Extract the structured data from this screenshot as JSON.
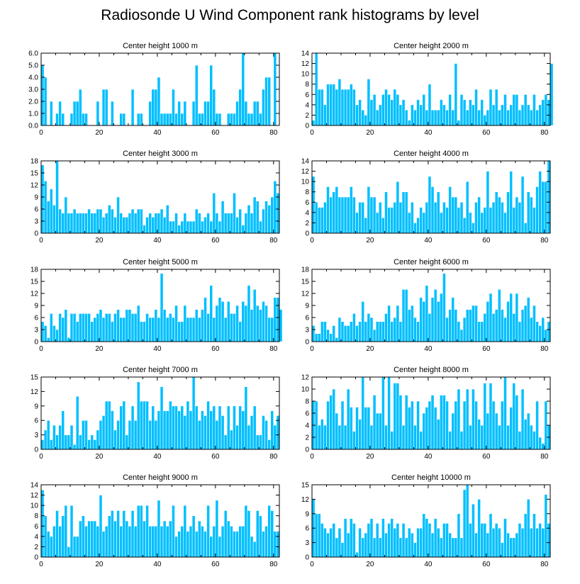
{
  "page_title": "Radiosonde U Wind Component rank histograms by level",
  "colors": {
    "bar": "#00bfff",
    "bar_edge": "#ffffff",
    "axis": "#000000",
    "background": "#ffffff"
  },
  "chart_data": [
    {
      "type": "bar",
      "title": "Center height 1000 m",
      "xlim": [
        0,
        82
      ],
      "ylim": [
        0,
        6
      ],
      "xticks": [
        0,
        20,
        40,
        60,
        80
      ],
      "yticks": [
        0,
        1,
        2,
        3,
        4,
        5,
        6
      ],
      "ytick_labels": [
        "0.0",
        "1.0",
        "2.0",
        "3.0",
        "4.0",
        "5.0",
        "6.0"
      ],
      "values": [
        5,
        4,
        0,
        2,
        0,
        1,
        2,
        1,
        0,
        0,
        1,
        2,
        2,
        3,
        1,
        1,
        0,
        0,
        0,
        2,
        0,
        3,
        3,
        0,
        2,
        0,
        0,
        1,
        1,
        0,
        0,
        3,
        0,
        1,
        1,
        0,
        0,
        2,
        3,
        3,
        4,
        1,
        1,
        1,
        1,
        3,
        1,
        2,
        1,
        2,
        0,
        0,
        2,
        5,
        1,
        1,
        2,
        2,
        5,
        3,
        1,
        1,
        0,
        0,
        1,
        1,
        1,
        2,
        3,
        6,
        2,
        1,
        1,
        2,
        2,
        1,
        3,
        4,
        4,
        0,
        6,
        0
      ]
    },
    {
      "type": "bar",
      "title": "Center height 2000 m",
      "xlim": [
        0,
        82
      ],
      "ylim": [
        0,
        14
      ],
      "xticks": [
        0,
        20,
        40,
        60,
        80
      ],
      "yticks": [
        0,
        2,
        4,
        6,
        8,
        10,
        12,
        14
      ],
      "ytick_labels": [
        "0",
        "2",
        "4",
        "6",
        "8",
        "10",
        "12",
        "14"
      ],
      "values": [
        1,
        14,
        7,
        7,
        4,
        8,
        8,
        8,
        7,
        9,
        7,
        7,
        7,
        8,
        7,
        4,
        5,
        3,
        2,
        9,
        5,
        6,
        3,
        4,
        6,
        7,
        6,
        5,
        7,
        6,
        4,
        5,
        3,
        1,
        4,
        3,
        5,
        4,
        6,
        3,
        8,
        3,
        3,
        3,
        5,
        4,
        3,
        6,
        3,
        12,
        1,
        6,
        5,
        3,
        5,
        4,
        7,
        3,
        5,
        2,
        3,
        7,
        4,
        7,
        3,
        4,
        6,
        3,
        4,
        6,
        6,
        3,
        4,
        6,
        4,
        3,
        6,
        3,
        4,
        5,
        6,
        5,
        12
      ]
    },
    {
      "type": "bar",
      "title": "Center height 3000 m",
      "xlim": [
        0,
        82
      ],
      "ylim": [
        0,
        18
      ],
      "xticks": [
        0,
        20,
        40,
        60,
        80
      ],
      "yticks": [
        0,
        3,
        6,
        9,
        12,
        15,
        18
      ],
      "ytick_labels": [
        "0",
        "3",
        "6",
        "9",
        "12",
        "15",
        "18"
      ],
      "values": [
        17,
        13,
        8,
        11,
        7,
        18,
        6,
        5,
        9,
        5,
        5,
        6,
        5,
        5,
        5,
        5,
        6,
        5,
        5,
        6,
        6,
        4,
        5,
        7,
        6,
        4,
        9,
        5,
        4,
        4,
        5,
        6,
        5,
        6,
        6,
        2,
        4,
        5,
        4,
        5,
        5,
        6,
        4,
        7,
        3,
        3,
        5,
        2,
        3,
        5,
        3,
        3,
        3,
        6,
        5,
        3,
        4,
        5,
        3,
        10,
        5,
        3,
        8,
        5,
        5,
        5,
        10,
        4,
        6,
        2,
        5,
        7,
        5,
        9,
        8,
        3,
        6,
        8,
        7,
        9,
        13,
        10
      ]
    },
    {
      "type": "bar",
      "title": "Center height 4000 m",
      "xlim": [
        0,
        82
      ],
      "ylim": [
        0,
        14
      ],
      "xticks": [
        0,
        20,
        40,
        60,
        80
      ],
      "yticks": [
        0,
        2,
        4,
        6,
        8,
        10,
        12,
        14
      ],
      "ytick_labels": [
        "0",
        "2",
        "4",
        "6",
        "8",
        "10",
        "12",
        "14"
      ],
      "values": [
        11,
        6,
        5,
        5,
        6,
        9,
        7,
        8,
        9,
        7,
        7,
        7,
        7,
        9,
        7,
        4,
        6,
        6,
        3,
        9,
        7,
        7,
        4,
        6,
        3,
        8,
        5,
        5,
        6,
        10,
        6,
        8,
        8,
        4,
        6,
        2,
        3,
        5,
        4,
        6,
        11,
        9,
        6,
        8,
        4,
        6,
        5,
        9,
        7,
        7,
        5,
        6,
        3,
        10,
        4,
        2,
        6,
        7,
        4,
        5,
        12,
        5,
        6,
        8,
        7,
        6,
        4,
        8,
        12,
        5,
        7,
        6,
        11,
        2,
        8,
        7,
        5,
        9,
        12,
        10,
        10,
        14
      ]
    },
    {
      "type": "bar",
      "title": "Center height 5000 m",
      "xlim": [
        0,
        82
      ],
      "ylim": [
        0,
        18
      ],
      "xticks": [
        0,
        20,
        40,
        60,
        80
      ],
      "yticks": [
        0,
        3,
        6,
        9,
        12,
        15,
        18
      ],
      "ytick_labels": [
        "0",
        "3",
        "6",
        "9",
        "12",
        "15",
        "18"
      ],
      "values": [
        5,
        4,
        1,
        7,
        4,
        3,
        7,
        6,
        8,
        1,
        7,
        7,
        5,
        7,
        7,
        7,
        7,
        5,
        6,
        7,
        8,
        6,
        7,
        7,
        5,
        7,
        8,
        6,
        6,
        8,
        8,
        7,
        7,
        9,
        5,
        5,
        7,
        6,
        6,
        8,
        6,
        17,
        8,
        6,
        7,
        6,
        9,
        5,
        5,
        9,
        6,
        6,
        6,
        8,
        6,
        8,
        11,
        7,
        14,
        6,
        9,
        11,
        10,
        6,
        10,
        7,
        7,
        9,
        5,
        10,
        9,
        14,
        8,
        13,
        9,
        8,
        10,
        9,
        6,
        6,
        11,
        11,
        8
      ]
    },
    {
      "type": "bar",
      "title": "Center height 6000 m",
      "xlim": [
        0,
        82
      ],
      "ylim": [
        0,
        18
      ],
      "xticks": [
        0,
        20,
        40,
        60,
        80
      ],
      "yticks": [
        0,
        3,
        6,
        9,
        12,
        15,
        18
      ],
      "ytick_labels": [
        "0",
        "3",
        "6",
        "9",
        "12",
        "15",
        "18"
      ],
      "values": [
        4,
        2,
        2,
        5,
        5,
        3,
        2,
        4,
        1,
        6,
        5,
        4,
        4,
        5,
        7,
        4,
        5,
        10,
        5,
        7,
        6,
        3,
        5,
        5,
        5,
        7,
        9,
        5,
        6,
        9,
        5,
        13,
        13,
        8,
        9,
        6,
        5,
        11,
        10,
        14,
        7,
        11,
        13,
        10,
        12,
        17,
        6,
        8,
        11,
        8,
        5,
        3,
        6,
        8,
        8,
        9,
        9,
        5,
        5,
        7,
        10,
        12,
        7,
        8,
        13,
        8,
        6,
        10,
        12,
        7,
        12,
        5,
        8,
        9,
        11,
        6,
        9,
        5,
        4,
        6,
        3,
        5
      ]
    },
    {
      "type": "bar",
      "title": "Center height 7000 m",
      "xlim": [
        0,
        82
      ],
      "ylim": [
        0,
        15
      ],
      "xticks": [
        0,
        20,
        40,
        60,
        80
      ],
      "yticks": [
        0,
        3,
        6,
        9,
        12,
        15
      ],
      "ytick_labels": [
        "0",
        "3",
        "6",
        "9",
        "12",
        "15"
      ],
      "values": [
        2,
        4,
        6,
        2,
        5,
        3,
        5,
        8,
        3,
        3,
        5,
        1,
        11,
        3,
        6,
        6,
        2,
        3,
        2,
        4,
        6,
        7,
        10,
        10,
        8,
        4,
        6,
        9,
        10,
        3,
        6,
        9,
        6,
        14,
        10,
        10,
        10,
        6,
        9,
        6,
        8,
        13,
        8,
        8,
        10,
        9,
        9,
        8,
        9,
        7,
        10,
        8,
        15,
        9,
        6,
        8,
        7,
        10,
        8,
        9,
        6,
        9,
        7,
        3,
        9,
        4,
        9,
        5,
        9,
        8,
        13,
        5,
        7,
        9,
        3,
        3,
        7,
        6,
        2,
        8,
        5,
        7
      ]
    },
    {
      "type": "bar",
      "title": "Center height 8000 m",
      "xlim": [
        0,
        82
      ],
      "ylim": [
        0,
        12
      ],
      "xticks": [
        0,
        20,
        40,
        60,
        80
      ],
      "yticks": [
        0,
        2,
        4,
        6,
        8,
        10,
        12
      ],
      "ytick_labels": [
        "0",
        "2",
        "4",
        "6",
        "8",
        "10",
        "12"
      ],
      "values": [
        8,
        8,
        4,
        5,
        4,
        8,
        9,
        10,
        6,
        4,
        8,
        4,
        10,
        7,
        3,
        7,
        5,
        12,
        7,
        7,
        4,
        9,
        6,
        6,
        12,
        4,
        12,
        3,
        11,
        11,
        9,
        4,
        9,
        7,
        8,
        4,
        8,
        3,
        6,
        7,
        8,
        9,
        7,
        5,
        9,
        9,
        8,
        3,
        6,
        8,
        10,
        3,
        8,
        10,
        4,
        10,
        8,
        5,
        4,
        11,
        6,
        11,
        8,
        6,
        4,
        8,
        12,
        4,
        7,
        11,
        9,
        3,
        10,
        5,
        6,
        4,
        3,
        8,
        2,
        1,
        8,
        4
      ]
    },
    {
      "type": "bar",
      "title": "Center height 9000 m",
      "xlim": [
        0,
        82
      ],
      "ylim": [
        0,
        14
      ],
      "xticks": [
        0,
        20,
        40,
        60,
        80
      ],
      "yticks": [
        0,
        2,
        4,
        6,
        8,
        10,
        12,
        14
      ],
      "ytick_labels": [
        "0",
        "2",
        "4",
        "6",
        "8",
        "10",
        "12",
        "14"
      ],
      "values": [
        13,
        8,
        5,
        4,
        6,
        9,
        6,
        8,
        10,
        2,
        10,
        4,
        4,
        7,
        8,
        6,
        7,
        7,
        7,
        6,
        12,
        5,
        6,
        8,
        9,
        7,
        9,
        6,
        9,
        7,
        6,
        9,
        6,
        10,
        10,
        7,
        10,
        6,
        6,
        6,
        11,
        6,
        7,
        6,
        7,
        10,
        4,
        5,
        6,
        10,
        5,
        6,
        8,
        5,
        7,
        6,
        5,
        10,
        4,
        6,
        11,
        4,
        6,
        9,
        7,
        6,
        5,
        5,
        6,
        6,
        10,
        9,
        4,
        3,
        9,
        8,
        5,
        6,
        10,
        9,
        5,
        5
      ]
    },
    {
      "type": "bar",
      "title": "Center height 10000 m",
      "xlim": [
        0,
        82
      ],
      "ylim": [
        0,
        15
      ],
      "xticks": [
        0,
        20,
        40,
        60,
        80
      ],
      "yticks": [
        0,
        3,
        6,
        9,
        12,
        15
      ],
      "ytick_labels": [
        "0",
        "3",
        "6",
        "9",
        "12",
        "15"
      ],
      "values": [
        12,
        9,
        9,
        7,
        6,
        5,
        6,
        7,
        4,
        6,
        3,
        8,
        5,
        8,
        7,
        1,
        6,
        4,
        5,
        7,
        8,
        4,
        7,
        4,
        8,
        5,
        7,
        8,
        6,
        7,
        4,
        7,
        4,
        6,
        5,
        3,
        6,
        6,
        9,
        8,
        7,
        5,
        8,
        6,
        4,
        7,
        7,
        5,
        4,
        4,
        9,
        4,
        14,
        15,
        7,
        11,
        5,
        12,
        7,
        7,
        5,
        9,
        6,
        7,
        6,
        3,
        8,
        5,
        4,
        4,
        5,
        7,
        6,
        9,
        12,
        6,
        9,
        6,
        7,
        6,
        13,
        7
      ]
    }
  ]
}
